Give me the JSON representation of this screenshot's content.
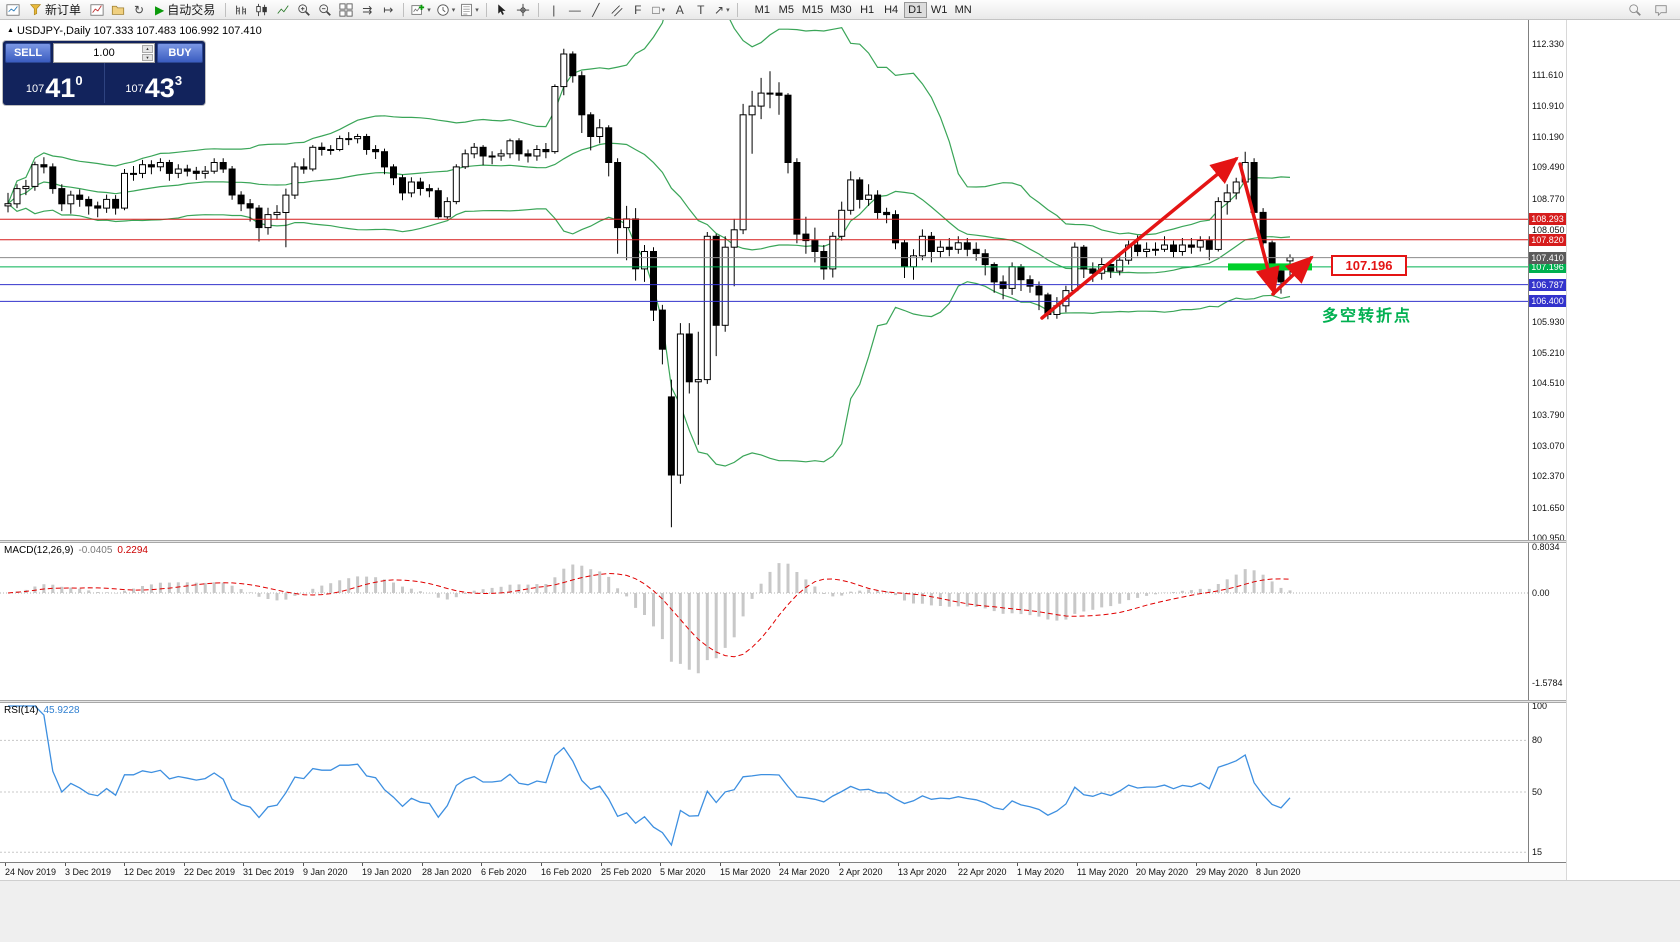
{
  "icons": {
    "new_window": "⊞",
    "refresh": "↻",
    "play": "▶",
    "autoscroll": "⇉",
    "chart_shift": "↦",
    "vertical_line": "|",
    "horizontal_line": "—",
    "trendline": "╱",
    "fibonacci": "F",
    "shapes": "□",
    "text": "A",
    "text_label": "T",
    "arrows": "↗",
    "caret": "▾",
    "up_triangle": "▲",
    "spin_up": "▲",
    "spin_down": "▼"
  },
  "toolbar": {
    "new_order": "新订单",
    "autotrading": "自动交易",
    "timeframes": [
      "M1",
      "M5",
      "M15",
      "M30",
      "H1",
      "H4",
      "D1",
      "W1",
      "MN"
    ],
    "active_timeframe": "D1"
  },
  "colors": {
    "bollinger": "#3aa558",
    "rsi": "#3d8fe0",
    "macd_histogram": "#c8c8c8",
    "macd_signal": "#e00000",
    "arrow": "#e41414",
    "level_red": "#d61c1c",
    "level_green": "#00b050",
    "level_blue": "#3333cc",
    "highlight_green": "#00d02a"
  },
  "chart": {
    "title_symbol": "USDJPY-,Daily",
    "title_ohlc": "107.333 107.483 106.992 107.410",
    "trade_panel": {
      "sell": "SELL",
      "buy": "BUY",
      "volume": "1.00",
      "sell_small": "107",
      "sell_big": "41",
      "sell_sup": "0",
      "buy_small": "107",
      "buy_big": "43",
      "buy_sup": "3"
    },
    "levels": [
      {
        "label": "108.293",
        "value": 108.293,
        "color": "#d61c1c"
      },
      {
        "label": "107.820",
        "value": 107.82,
        "color": "#d61c1c"
      },
      {
        "label": "107.196",
        "value": 107.196,
        "color": "#00b050"
      },
      {
        "label": "106.787",
        "value": 106.787,
        "color": "#3333cc"
      },
      {
        "label": "106.400",
        "value": 106.4,
        "color": "#3333cc"
      }
    ],
    "current_price": {
      "label": "107.410",
      "value": 107.41,
      "tag_color": "#5a5a5a"
    },
    "highlight": {
      "price": 107.196,
      "color": "#00d02a"
    },
    "price_callout": "107.196",
    "annotation_text": "多空转折点",
    "axis_labels": [
      "112.330",
      "111.610",
      "110.910",
      "110.190",
      "109.490",
      "108.770",
      "108.050",
      "105.930",
      "105.210",
      "104.510",
      "103.790",
      "103.070",
      "102.370",
      "101.650",
      "100.950"
    ]
  },
  "macd": {
    "label": "MACD(12,26,9)",
    "value_main": "-0.0405",
    "value_signal": "0.2294",
    "axis": [
      {
        "label": "0.8034",
        "value": 0.8034
      },
      {
        "label": "0.00",
        "value": 0
      },
      {
        "label": "-1.5784",
        "value": -1.5784
      }
    ]
  },
  "rsi": {
    "label": "RSI(14)",
    "value": "45.9228",
    "axis": [
      {
        "label": "100",
        "value": 100
      },
      {
        "label": "80",
        "value": 80
      },
      {
        "label": "50",
        "value": 50
      },
      {
        "label": "15",
        "value": 15
      }
    ],
    "levels": [
      80,
      50,
      15
    ]
  },
  "chart_data": {
    "type": "candlestick",
    "symbol": "USDJPY",
    "timeframe": "Daily",
    "date_labels": [
      "24 Nov 2019",
      "3 Dec 2019",
      "12 Dec 2019",
      "22 Dec 2019",
      "31 Dec 2019",
      "9 Jan 2020",
      "19 Jan 2020",
      "28 Jan 2020",
      "6 Feb 2020",
      "16 Feb 2020",
      "25 Feb 2020",
      "5 Mar 2020",
      "15 Mar 2020",
      "24 Mar 2020",
      "2 Apr 2020",
      "13 Apr 2020",
      "22 Apr 2020",
      "1 May 2020",
      "11 May 2020",
      "20 May 2020",
      "29 May 2020",
      "8 Jun 2020"
    ],
    "price_range_visible": [
      100.95,
      112.33
    ],
    "candles": [
      [
        108.6,
        108.9,
        108.45,
        108.65
      ],
      [
        108.65,
        109.1,
        108.55,
        109.0
      ],
      [
        109.0,
        109.2,
        108.85,
        109.05
      ],
      [
        109.05,
        109.62,
        108.95,
        109.55
      ],
      [
        109.55,
        109.72,
        109.35,
        109.5
      ],
      [
        109.5,
        109.58,
        108.88,
        109.0
      ],
      [
        109.0,
        109.1,
        108.48,
        108.65
      ],
      [
        108.65,
        108.95,
        108.42,
        108.85
      ],
      [
        108.85,
        108.98,
        108.58,
        108.75
      ],
      [
        108.75,
        108.82,
        108.4,
        108.6
      ],
      [
        108.6,
        108.7,
        108.34,
        108.55
      ],
      [
        108.55,
        108.86,
        108.44,
        108.75
      ],
      [
        108.75,
        108.85,
        108.4,
        108.55
      ],
      [
        108.55,
        109.45,
        108.5,
        109.35
      ],
      [
        109.35,
        109.52,
        109.18,
        109.35
      ],
      [
        109.35,
        109.66,
        109.24,
        109.55
      ],
      [
        109.55,
        109.65,
        109.33,
        109.5
      ],
      [
        109.5,
        109.7,
        109.4,
        109.6
      ],
      [
        109.6,
        109.66,
        109.18,
        109.35
      ],
      [
        109.35,
        109.56,
        109.24,
        109.45
      ],
      [
        109.45,
        109.55,
        109.28,
        109.4
      ],
      [
        109.4,
        109.5,
        109.2,
        109.35
      ],
      [
        109.35,
        109.52,
        109.23,
        109.4
      ],
      [
        109.4,
        109.7,
        109.34,
        109.6
      ],
      [
        109.6,
        109.7,
        109.36,
        109.45
      ],
      [
        109.45,
        109.52,
        108.74,
        108.85
      ],
      [
        108.85,
        108.94,
        108.48,
        108.65
      ],
      [
        108.65,
        108.76,
        108.24,
        108.55
      ],
      [
        108.55,
        108.62,
        107.78,
        108.1
      ],
      [
        108.1,
        108.56,
        107.94,
        108.4
      ],
      [
        108.4,
        108.62,
        108.28,
        108.45
      ],
      [
        108.45,
        109.0,
        107.65,
        108.85
      ],
      [
        108.85,
        109.6,
        108.76,
        109.5
      ],
      [
        109.5,
        109.7,
        109.34,
        109.45
      ],
      [
        109.45,
        110.0,
        109.4,
        109.95
      ],
      [
        109.95,
        110.06,
        109.76,
        109.9
      ],
      [
        109.9,
        110.0,
        109.78,
        109.9
      ],
      [
        109.9,
        110.22,
        109.86,
        110.15
      ],
      [
        110.15,
        110.3,
        110.0,
        110.15
      ],
      [
        110.15,
        110.26,
        110.04,
        110.2
      ],
      [
        110.2,
        110.26,
        109.78,
        109.9
      ],
      [
        109.9,
        110.0,
        109.68,
        109.85
      ],
      [
        109.85,
        109.92,
        109.33,
        109.5
      ],
      [
        109.5,
        109.56,
        109.08,
        109.25
      ],
      [
        109.25,
        109.32,
        108.73,
        108.9
      ],
      [
        108.9,
        109.26,
        108.8,
        109.15
      ],
      [
        109.15,
        109.25,
        108.84,
        109.0
      ],
      [
        109.0,
        109.1,
        108.8,
        108.95
      ],
      [
        108.95,
        109.02,
        108.31,
        108.35
      ],
      [
        108.35,
        108.8,
        108.3,
        108.7
      ],
      [
        108.7,
        109.56,
        108.64,
        109.5
      ],
      [
        109.5,
        109.9,
        109.45,
        109.8
      ],
      [
        109.8,
        110.05,
        109.7,
        109.95
      ],
      [
        109.95,
        110.0,
        109.54,
        109.75
      ],
      [
        109.75,
        109.86,
        109.56,
        109.75
      ],
      [
        109.75,
        109.9,
        109.64,
        109.8
      ],
      [
        109.8,
        110.15,
        109.7,
        110.1
      ],
      [
        110.1,
        110.16,
        109.64,
        109.8
      ],
      [
        109.8,
        109.9,
        109.6,
        109.75
      ],
      [
        109.75,
        110.0,
        109.64,
        109.9
      ],
      [
        109.9,
        110.05,
        109.7,
        109.85
      ],
      [
        109.85,
        111.4,
        109.8,
        111.35
      ],
      [
        111.35,
        112.22,
        111.15,
        112.1
      ],
      [
        112.1,
        112.16,
        111.44,
        111.6
      ],
      [
        111.6,
        111.7,
        110.28,
        110.7
      ],
      [
        110.7,
        110.76,
        109.88,
        110.2
      ],
      [
        110.2,
        110.6,
        110.04,
        110.4
      ],
      [
        110.4,
        110.46,
        109.28,
        109.6
      ],
      [
        109.6,
        109.7,
        107.5,
        108.1
      ],
      [
        108.1,
        108.6,
        107.35,
        108.3
      ],
      [
        108.3,
        108.55,
        106.88,
        107.15
      ],
      [
        107.15,
        107.7,
        106.85,
        107.55
      ],
      [
        107.55,
        107.65,
        105.95,
        106.2
      ],
      [
        106.2,
        106.32,
        104.95,
        105.3
      ],
      [
        104.2,
        104.6,
        101.2,
        102.4
      ],
      [
        102.4,
        105.9,
        102.2,
        105.65
      ],
      [
        105.65,
        105.9,
        104.28,
        104.55
      ],
      [
        104.55,
        105.7,
        103.1,
        104.6
      ],
      [
        104.6,
        108.0,
        104.5,
        107.9
      ],
      [
        107.9,
        107.96,
        105.14,
        105.85
      ],
      [
        105.85,
        107.9,
        105.7,
        107.65
      ],
      [
        107.65,
        108.3,
        106.75,
        108.05
      ],
      [
        108.05,
        110.95,
        107.95,
        110.7
      ],
      [
        110.7,
        111.25,
        109.8,
        110.9
      ],
      [
        110.9,
        111.55,
        110.6,
        111.2
      ],
      [
        111.2,
        111.7,
        110.85,
        111.2
      ],
      [
        111.2,
        111.45,
        110.7,
        111.15
      ],
      [
        111.15,
        111.2,
        109.35,
        109.6
      ],
      [
        109.6,
        109.7,
        107.74,
        107.95
      ],
      [
        107.95,
        108.35,
        107.5,
        107.8
      ],
      [
        107.8,
        108.1,
        107.3,
        107.55
      ],
      [
        107.55,
        107.7,
        106.9,
        107.15
      ],
      [
        107.15,
        108.0,
        106.95,
        107.9
      ],
      [
        107.9,
        108.7,
        107.8,
        108.5
      ],
      [
        108.5,
        109.4,
        108.4,
        109.2
      ],
      [
        109.2,
        109.26,
        108.54,
        108.75
      ],
      [
        108.75,
        109.1,
        108.6,
        108.85
      ],
      [
        108.85,
        108.96,
        108.3,
        108.45
      ],
      [
        108.45,
        108.56,
        108.2,
        108.4
      ],
      [
        108.4,
        108.5,
        107.6,
        107.75
      ],
      [
        107.75,
        107.82,
        106.94,
        107.2
      ],
      [
        107.2,
        107.6,
        106.9,
        107.45
      ],
      [
        107.45,
        108.06,
        107.35,
        107.9
      ],
      [
        107.9,
        108.0,
        107.3,
        107.55
      ],
      [
        107.55,
        107.8,
        107.4,
        107.65
      ],
      [
        107.65,
        107.86,
        107.44,
        107.6
      ],
      [
        107.6,
        107.9,
        107.5,
        107.75
      ],
      [
        107.75,
        107.86,
        107.44,
        107.6
      ],
      [
        107.6,
        107.76,
        107.34,
        107.5
      ],
      [
        107.5,
        107.6,
        107.0,
        107.25
      ],
      [
        107.25,
        107.3,
        106.6,
        106.85
      ],
      [
        106.85,
        107.0,
        106.45,
        106.7
      ],
      [
        106.7,
        107.3,
        106.55,
        107.2
      ],
      [
        107.2,
        107.26,
        106.64,
        106.9
      ],
      [
        106.9,
        107.0,
        106.6,
        106.75
      ],
      [
        106.75,
        106.86,
        106.2,
        106.55
      ],
      [
        106.55,
        106.6,
        105.99,
        106.1
      ],
      [
        106.1,
        106.5,
        106.0,
        106.3
      ],
      [
        106.3,
        106.76,
        106.15,
        106.65
      ],
      [
        106.65,
        107.76,
        106.6,
        107.65
      ],
      [
        107.65,
        107.7,
        106.94,
        107.15
      ],
      [
        107.15,
        107.3,
        106.85,
        107.05
      ],
      [
        107.05,
        107.4,
        106.9,
        107.25
      ],
      [
        107.25,
        107.36,
        106.94,
        107.1
      ],
      [
        107.1,
        107.5,
        107.0,
        107.35
      ],
      [
        107.35,
        107.8,
        107.25,
        107.7
      ],
      [
        107.7,
        107.92,
        107.44,
        107.55
      ],
      [
        107.55,
        107.76,
        107.4,
        107.6
      ],
      [
        107.6,
        107.76,
        107.45,
        107.6
      ],
      [
        107.6,
        107.9,
        107.54,
        107.7
      ],
      [
        107.7,
        107.8,
        107.4,
        107.55
      ],
      [
        107.55,
        107.86,
        107.45,
        107.7
      ],
      [
        107.7,
        107.86,
        107.5,
        107.65
      ],
      [
        107.65,
        107.9,
        107.55,
        107.8
      ],
      [
        107.8,
        107.9,
        107.35,
        107.6
      ],
      [
        107.6,
        108.8,
        107.55,
        108.7
      ],
      [
        108.7,
        109.1,
        108.4,
        108.9
      ],
      [
        108.9,
        109.25,
        108.75,
        109.15
      ],
      [
        109.15,
        109.85,
        109.05,
        109.6
      ],
      [
        109.6,
        109.7,
        108.24,
        108.45
      ],
      [
        108.45,
        108.55,
        107.58,
        107.75
      ],
      [
        107.75,
        107.8,
        106.9,
        107.1
      ],
      [
        107.1,
        107.2,
        106.58,
        106.85
      ],
      [
        107.333,
        107.483,
        106.992,
        107.41
      ]
    ]
  }
}
